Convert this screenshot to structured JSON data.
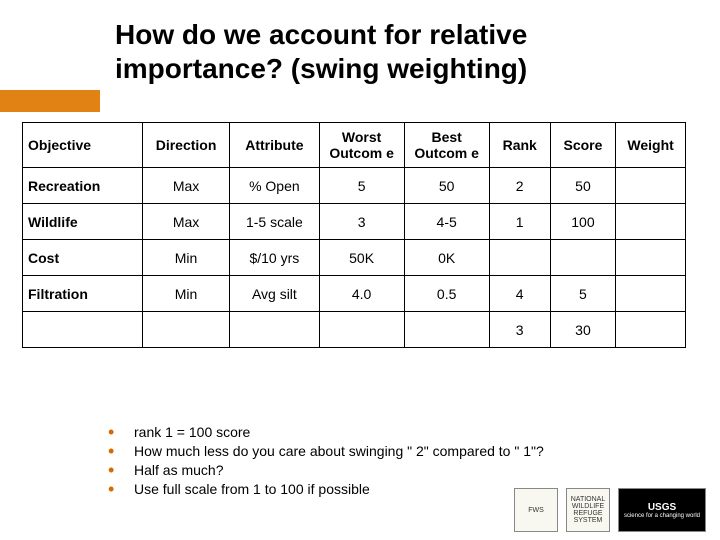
{
  "title": "How do we account for relative importance? (swing weighting)",
  "accent_color": "#e08214",
  "table": {
    "columns": [
      "Objective",
      "Direction",
      "Attribute",
      "Worst Outcom e",
      "Best Outcom e",
      "Rank",
      "Score",
      "Weight"
    ],
    "rows": [
      {
        "objective": "Recreation",
        "direction": "Max",
        "attribute": "% Open",
        "worst": "5",
        "best": "50",
        "rank": "2",
        "score": "50",
        "weight": ""
      },
      {
        "objective": "Wildlife",
        "direction": "Max",
        "attribute": "1-5 scale",
        "worst": "3",
        "best": "4-5",
        "rank": "1",
        "score": "100",
        "weight": ""
      },
      {
        "objective": "Cost",
        "direction": "Min",
        "attribute": "$/10 yrs",
        "worst": "50K",
        "best": "0K",
        "rank": "",
        "score": "",
        "weight": ""
      },
      {
        "objective": "Filtration",
        "direction": "Min",
        "attribute": "Avg silt",
        "worst": "4.0",
        "best": "0.5",
        "rank": "4",
        "score": "5",
        "weight": ""
      },
      {
        "objective": "",
        "direction": "",
        "attribute": "",
        "worst": "",
        "best": "",
        "rank": "3",
        "score": "30",
        "weight": ""
      }
    ]
  },
  "bullets": [
    "rank 1 = 100 score",
    "How much less do you care about swinging \" 2\" compared to \" 1\"?",
    "Half as much?",
    "Use full scale from 1 to 100 if possible"
  ],
  "logos": {
    "l1": "FWS",
    "l2": "NATIONAL WILDLIFE REFUGE SYSTEM",
    "l3_main": "USGS",
    "l3_sub": "science for a changing world"
  }
}
